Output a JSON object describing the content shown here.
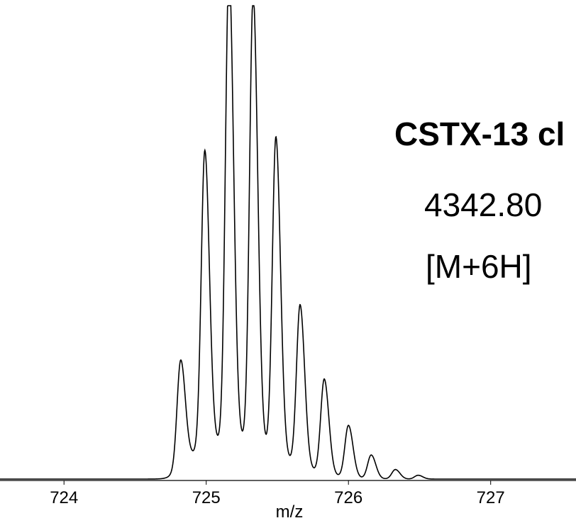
{
  "chart_data": {
    "type": "line",
    "title": "",
    "xlabel": "m/z",
    "ylabel": "",
    "xlim": [
      723.55,
      727.6
    ],
    "ylim": [
      0,
      100
    ],
    "x_ticks": [
      "724",
      "725",
      "726",
      "727"
    ],
    "grid": false,
    "legend": "none",
    "series": [
      {
        "color": "#000000",
        "peaks": [
          {
            "x": 724.82,
            "y": 22
          },
          {
            "x": 724.99,
            "y": 63
          },
          {
            "x": 725.16,
            "y": 100
          },
          {
            "x": 725.33,
            "y": 95
          },
          {
            "x": 725.49,
            "y": 67
          },
          {
            "x": 725.66,
            "y": 34
          },
          {
            "x": 725.83,
            "y": 20
          },
          {
            "x": 726.0,
            "y": 11
          },
          {
            "x": 726.16,
            "y": 5
          },
          {
            "x": 726.33,
            "y": 2
          },
          {
            "x": 726.49,
            "y": 0.8
          }
        ]
      }
    ],
    "annotations": [
      {
        "text": "CSTX-13 cl",
        "weight": "bold"
      },
      {
        "text": "4342.80",
        "weight": "normal"
      },
      {
        "text": "[M+6H]",
        "weight": "normal"
      }
    ]
  }
}
